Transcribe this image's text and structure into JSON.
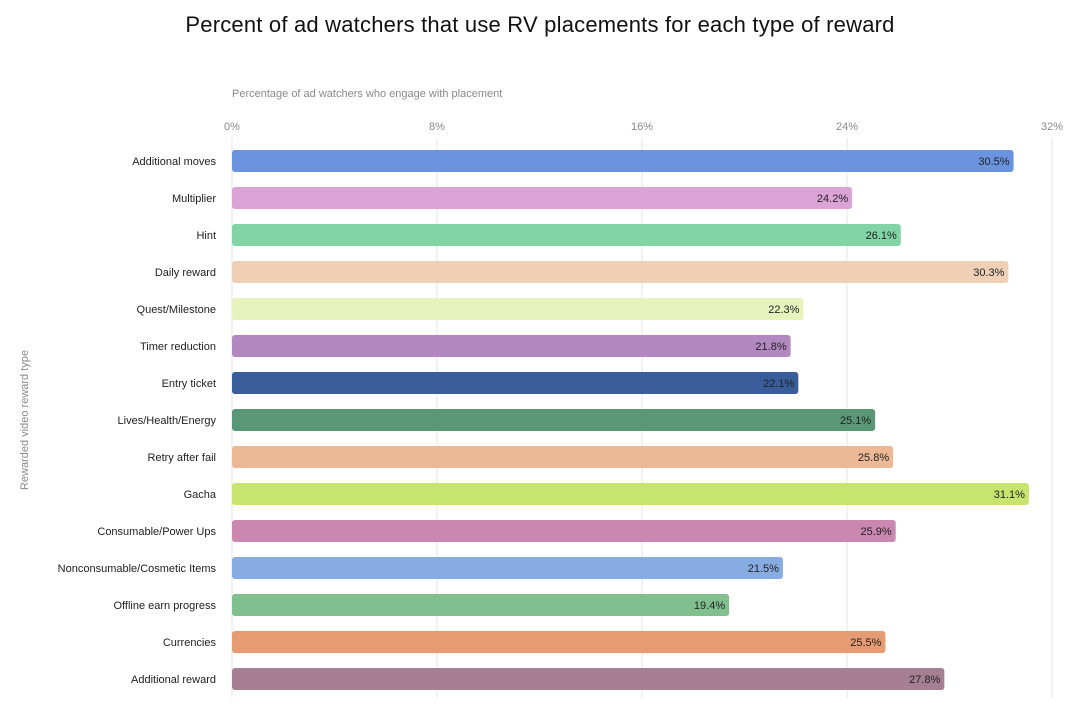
{
  "chart_data": {
    "type": "bar",
    "orientation": "horizontal",
    "title": "Percent of ad watchers that use RV placements for each type of reward",
    "xlabel": "Percentage of ad watchers who engage with placement",
    "ylabel": "Rewarded video reward type",
    "xlim": [
      0,
      32
    ],
    "x_ticks": [
      0,
      8,
      16,
      24,
      32
    ],
    "x_tick_labels": [
      "0%",
      "8%",
      "16%",
      "24%",
      "32%"
    ],
    "grid": true,
    "legend": "none",
    "categories": [
      "Additional moves",
      "Multiplier",
      "Hint",
      "Daily reward",
      "Quest/Milestone",
      "Timer reduction",
      "Entry ticket",
      "Lives/Health/Energy",
      "Retry after fail",
      "Gacha",
      "Consumable/Power Ups",
      "Nonconsumable/Cosmetic Items",
      "Offline earn progress",
      "Currencies",
      "Additional reward"
    ],
    "values": [
      30.5,
      24.2,
      26.1,
      30.3,
      22.3,
      21.8,
      22.1,
      25.1,
      25.8,
      31.1,
      25.9,
      21.5,
      19.4,
      25.5,
      27.8
    ],
    "value_labels": [
      "30.5%",
      "24.2%",
      "26.1%",
      "30.3%",
      "22.3%",
      "21.8%",
      "22.1%",
      "25.1%",
      "25.8%",
      "31.1%",
      "25.9%",
      "21.5%",
      "19.4%",
      "25.5%",
      "27.8%"
    ],
    "colors": [
      "#6a93e0",
      "#dca4d6",
      "#82d4a6",
      "#efcfb6",
      "#e7f2bc",
      "#b388c1",
      "#385d98",
      "#5a9776",
      "#ecb895",
      "#c7e56e",
      "#ca87b0",
      "#86ace2",
      "#80c08f",
      "#e69b72",
      "#a68092"
    ]
  }
}
